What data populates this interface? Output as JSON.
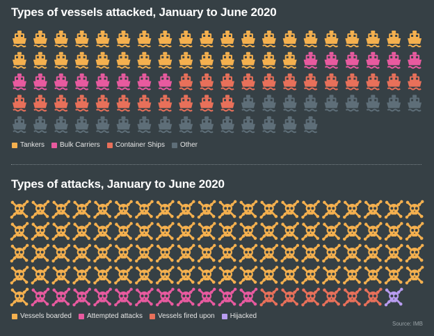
{
  "chart_data": [
    {
      "type": "pictogram",
      "title": "Types of vessels attacked, January to June 2020",
      "icon": "ship-icon",
      "columns": 20,
      "series": [
        {
          "name": "Tankers",
          "value": 34,
          "color": "#f4b04f"
        },
        {
          "name": "Bulk Carriers",
          "value": 14,
          "color": "#e85a9f"
        },
        {
          "name": "Container Ships",
          "value": 23,
          "color": "#e8705a"
        },
        {
          "name": "Other",
          "value": 24,
          "color": "#5e6e78"
        }
      ]
    },
    {
      "type": "pictogram",
      "title": "Types of attacks, January to June 2020",
      "icon": "skull-crossbones-icon",
      "columns": 20,
      "series": [
        {
          "name": "Vessels boarded",
          "value": 81,
          "color": "#f4b04f"
        },
        {
          "name": "Attempted attacks",
          "value": 11,
          "color": "#e85a9f"
        },
        {
          "name": "Vessels fired upon",
          "value": 6,
          "color": "#e8705a"
        },
        {
          "name": "Hijacked",
          "value": 1,
          "color": "#b89cf0"
        }
      ]
    }
  ],
  "source": "Source: IMB"
}
